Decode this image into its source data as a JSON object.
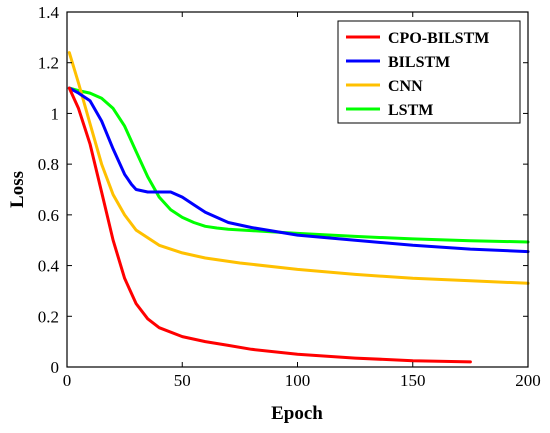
{
  "chart_data": {
    "type": "line",
    "title": "",
    "xlabel": "Epoch",
    "ylabel": "Loss",
    "xlim": [
      0,
      200
    ],
    "ylim": [
      0,
      1.4
    ],
    "xticks": [
      "0",
      "50",
      "100",
      "150",
      "200"
    ],
    "yticks": [
      "0",
      "0.2",
      "0.4",
      "0.6",
      "0.8",
      "1",
      "1.2",
      "1.4"
    ],
    "grid": false,
    "legend_position": "top-right",
    "series": [
      {
        "name": "CPO-BILSTM",
        "color": "#ff0000",
        "x": [
          1,
          5,
          10,
          15,
          20,
          25,
          30,
          35,
          40,
          50,
          60,
          70,
          80,
          100,
          125,
          150,
          175
        ],
        "y": [
          1.1,
          1.02,
          0.88,
          0.69,
          0.5,
          0.35,
          0.25,
          0.19,
          0.155,
          0.12,
          0.1,
          0.085,
          0.07,
          0.05,
          0.035,
          0.025,
          0.02
        ]
      },
      {
        "name": "BILSTM",
        "color": "#0000ff",
        "x": [
          1,
          5,
          10,
          15,
          20,
          25,
          28,
          30,
          35,
          40,
          45,
          50,
          55,
          60,
          70,
          80,
          100,
          125,
          150,
          175,
          200
        ],
        "y": [
          1.1,
          1.08,
          1.05,
          0.97,
          0.86,
          0.76,
          0.72,
          0.7,
          0.69,
          0.69,
          0.69,
          0.67,
          0.64,
          0.61,
          0.57,
          0.55,
          0.52,
          0.5,
          0.48,
          0.465,
          0.455
        ]
      },
      {
        "name": "CNN",
        "color": "#ffc000",
        "x": [
          1,
          5,
          10,
          15,
          20,
          25,
          30,
          40,
          50,
          60,
          75,
          100,
          125,
          150,
          175,
          200
        ],
        "y": [
          1.24,
          1.12,
          0.96,
          0.8,
          0.68,
          0.6,
          0.54,
          0.48,
          0.45,
          0.43,
          0.41,
          0.385,
          0.365,
          0.35,
          0.34,
          0.33
        ]
      },
      {
        "name": "LSTM",
        "color": "#00ff00",
        "x": [
          1,
          5,
          10,
          15,
          20,
          25,
          30,
          35,
          40,
          45,
          50,
          55,
          60,
          65,
          70,
          80,
          100,
          125,
          150,
          175,
          200
        ],
        "y": [
          1.1,
          1.09,
          1.08,
          1.06,
          1.02,
          0.95,
          0.85,
          0.75,
          0.67,
          0.62,
          0.59,
          0.57,
          0.555,
          0.548,
          0.543,
          0.538,
          0.527,
          0.515,
          0.505,
          0.498,
          0.493
        ]
      }
    ]
  }
}
